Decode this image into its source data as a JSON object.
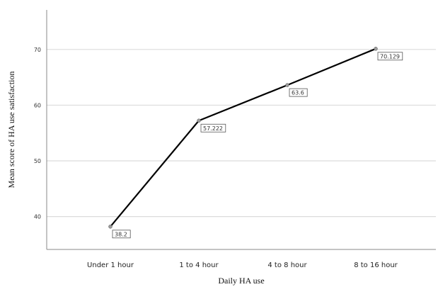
{
  "chart_data": {
    "type": "line",
    "categories": [
      "Under 1 hour",
      "1 to 4 hour",
      "4 to 8 hour",
      "8 to 16 hour"
    ],
    "series": [
      {
        "values": [
          38.2,
          57.222,
          63.6,
          70.129
        ]
      }
    ],
    "data_labels": [
      "38.2",
      "57.222",
      "63.6",
      "70.129"
    ],
    "xlabel": "Daily HA use",
    "ylabel": "Mean score of HA use satisfaction",
    "yticks": [
      40,
      50,
      60,
      70
    ],
    "ylim": [
      34.1,
      77.1
    ],
    "grid": true,
    "line_color": "#000000",
    "grid_color": "#dcdcdc"
  }
}
